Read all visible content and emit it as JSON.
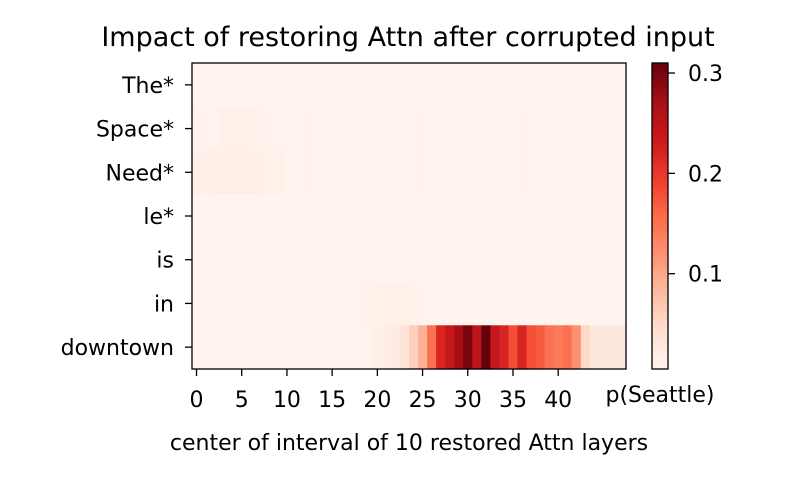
{
  "chart_data": {
    "type": "heatmap",
    "title": "Impact of restoring Attn after corrupted input",
    "xlabel": "center of interval of 10 restored Attn layers",
    "ylabel": "",
    "colorbar_label": "p(Seattle)",
    "colormap": "Reds",
    "colorbar_range": [
      0.005,
      0.31
    ],
    "colorbar_ticks": [
      "0.1",
      "0.2",
      "0.3"
    ],
    "colorbar_tick_values": [
      0.1,
      0.2,
      0.3
    ],
    "x_ticks": [
      "0",
      "5",
      "10",
      "15",
      "20",
      "25",
      "30",
      "35",
      "40"
    ],
    "x_tick_values": [
      0,
      5,
      10,
      15,
      20,
      25,
      30,
      35,
      40
    ],
    "x": [
      0,
      1,
      2,
      3,
      4,
      5,
      6,
      7,
      8,
      9,
      10,
      11,
      12,
      13,
      14,
      15,
      16,
      17,
      18,
      19,
      20,
      21,
      22,
      23,
      24,
      25,
      26,
      27,
      28,
      29,
      30,
      31,
      32,
      33,
      34,
      35,
      36,
      37,
      38,
      39,
      40,
      41,
      42,
      43,
      44,
      45,
      46,
      47
    ],
    "rows": [
      "The*",
      "Space*",
      "Need*",
      "le*",
      "is",
      "in",
      "downtown"
    ],
    "values": [
      [
        0.007,
        0.007,
        0.007,
        0.007,
        0.007,
        0.007,
        0.007,
        0.007,
        0.007,
        0.007,
        0.007,
        0.007,
        0.007,
        0.007,
        0.007,
        0.007,
        0.007,
        0.007,
        0.007,
        0.007,
        0.007,
        0.007,
        0.007,
        0.007,
        0.007,
        0.007,
        0.007,
        0.007,
        0.007,
        0.007,
        0.007,
        0.007,
        0.007,
        0.007,
        0.007,
        0.007,
        0.007,
        0.007,
        0.007,
        0.007,
        0.007,
        0.007,
        0.007,
        0.007,
        0.007,
        0.007,
        0.007,
        0.007
      ],
      [
        0.008,
        0.008,
        0.009,
        0.012,
        0.013,
        0.013,
        0.012,
        0.01,
        0.009,
        0.008,
        0.008,
        0.008,
        0.008,
        0.008,
        0.008,
        0.008,
        0.008,
        0.008,
        0.008,
        0.008,
        0.008,
        0.008,
        0.008,
        0.008,
        0.008,
        0.008,
        0.008,
        0.008,
        0.008,
        0.008,
        0.008,
        0.008,
        0.008,
        0.008,
        0.008,
        0.008,
        0.008,
        0.008,
        0.008,
        0.008,
        0.008,
        0.008,
        0.008,
        0.008,
        0.008,
        0.008,
        0.008,
        0.008
      ],
      [
        0.014,
        0.015,
        0.016,
        0.017,
        0.018,
        0.018,
        0.017,
        0.015,
        0.014,
        0.013,
        0.009,
        0.008,
        0.008,
        0.008,
        0.008,
        0.008,
        0.008,
        0.008,
        0.008,
        0.008,
        0.008,
        0.008,
        0.008,
        0.008,
        0.008,
        0.008,
        0.008,
        0.008,
        0.008,
        0.008,
        0.008,
        0.008,
        0.008,
        0.008,
        0.008,
        0.008,
        0.008,
        0.008,
        0.008,
        0.008,
        0.008,
        0.008,
        0.008,
        0.008,
        0.008,
        0.008,
        0.008,
        0.008
      ],
      [
        0.007,
        0.007,
        0.007,
        0.007,
        0.007,
        0.007,
        0.007,
        0.007,
        0.007,
        0.007,
        0.007,
        0.007,
        0.007,
        0.007,
        0.007,
        0.007,
        0.007,
        0.007,
        0.007,
        0.007,
        0.007,
        0.007,
        0.007,
        0.007,
        0.007,
        0.007,
        0.007,
        0.007,
        0.007,
        0.007,
        0.007,
        0.007,
        0.007,
        0.007,
        0.007,
        0.007,
        0.007,
        0.007,
        0.007,
        0.007,
        0.007,
        0.007,
        0.007,
        0.007,
        0.007,
        0.007,
        0.007,
        0.007
      ],
      [
        0.007,
        0.007,
        0.007,
        0.007,
        0.007,
        0.007,
        0.007,
        0.007,
        0.007,
        0.007,
        0.007,
        0.007,
        0.007,
        0.007,
        0.007,
        0.007,
        0.007,
        0.007,
        0.007,
        0.007,
        0.007,
        0.007,
        0.007,
        0.007,
        0.007,
        0.007,
        0.007,
        0.007,
        0.007,
        0.007,
        0.007,
        0.007,
        0.007,
        0.007,
        0.007,
        0.007,
        0.007,
        0.007,
        0.007,
        0.007,
        0.007,
        0.007,
        0.007,
        0.007,
        0.007,
        0.007,
        0.007,
        0.007
      ],
      [
        0.007,
        0.007,
        0.007,
        0.007,
        0.007,
        0.007,
        0.007,
        0.007,
        0.007,
        0.007,
        0.007,
        0.007,
        0.007,
        0.007,
        0.007,
        0.007,
        0.007,
        0.008,
        0.009,
        0.011,
        0.012,
        0.013,
        0.013,
        0.012,
        0.01,
        0.009,
        0.008,
        0.008,
        0.007,
        0.007,
        0.007,
        0.007,
        0.007,
        0.007,
        0.007,
        0.007,
        0.007,
        0.007,
        0.007,
        0.007,
        0.007,
        0.007,
        0.007,
        0.007,
        0.007,
        0.007,
        0.007,
        0.007
      ],
      [
        0.007,
        0.007,
        0.007,
        0.007,
        0.007,
        0.007,
        0.007,
        0.007,
        0.007,
        0.007,
        0.007,
        0.007,
        0.007,
        0.007,
        0.007,
        0.007,
        0.007,
        0.007,
        0.007,
        0.008,
        0.012,
        0.018,
        0.025,
        0.035,
        0.06,
        0.09,
        0.15,
        0.22,
        0.24,
        0.27,
        0.3,
        0.25,
        0.31,
        0.24,
        0.22,
        0.18,
        0.22,
        0.18,
        0.17,
        0.15,
        0.14,
        0.15,
        0.12,
        0.05,
        0.03,
        0.03,
        0.03,
        0.03
      ]
    ]
  }
}
